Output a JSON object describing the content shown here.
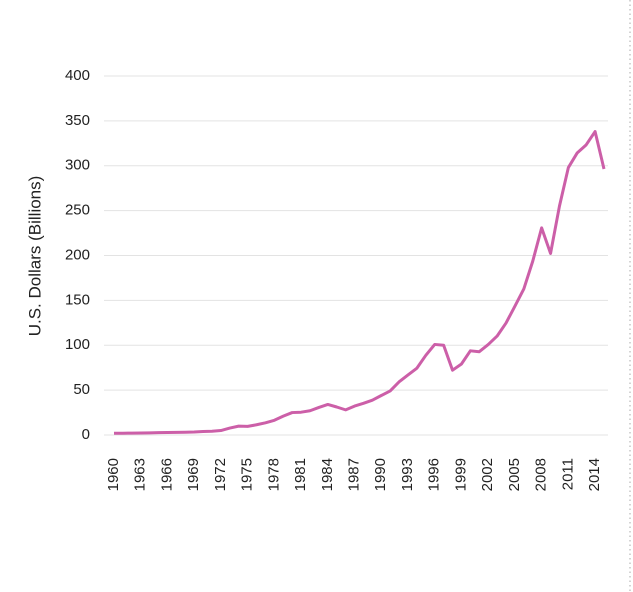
{
  "chart_data": {
    "type": "line",
    "y_label": "U.S. Dollars (Billions)",
    "x": [
      1960,
      1961,
      1962,
      1963,
      1964,
      1965,
      1966,
      1967,
      1968,
      1969,
      1970,
      1971,
      1972,
      1973,
      1974,
      1975,
      1976,
      1977,
      1978,
      1979,
      1980,
      1981,
      1982,
      1983,
      1984,
      1985,
      1986,
      1987,
      1988,
      1989,
      1990,
      1991,
      1992,
      1993,
      1994,
      1995,
      1996,
      1997,
      1998,
      1999,
      2000,
      2001,
      2002,
      2003,
      2004,
      2005,
      2006,
      2007,
      2008,
      2009,
      2010,
      2011,
      2012,
      2013,
      2014,
      2015
    ],
    "series": [
      {
        "color": "#cc5fa8",
        "values": [
          1.9,
          2.0,
          2.1,
          2.2,
          2.4,
          2.6,
          2.8,
          2.9,
          3.0,
          3.3,
          3.9,
          4.2,
          5.0,
          7.7,
          9.9,
          9.6,
          11.4,
          13.6,
          16.4,
          21.0,
          25.0,
          25.4,
          27.0,
          30.7,
          34.0,
          31.2,
          28.0,
          32.2,
          35.3,
          38.8,
          44.0,
          49.1,
          59.2,
          66.9,
          74.5,
          88.8,
          100.9,
          100.0,
          72.2,
          79.1,
          93.8,
          92.8,
          100.8,
          110.2,
          124.7,
          143.5,
          162.7,
          193.6,
          230.8,
          202.3,
          255.0,
          298.0,
          314.4,
          323.3,
          338.1,
          296.4
        ]
      }
    ],
    "xlim": [
      1960,
      2015
    ],
    "xticks": [
      1960,
      1963,
      1966,
      1969,
      1972,
      1975,
      1978,
      1981,
      1984,
      1987,
      1990,
      1993,
      1996,
      1999,
      2002,
      2005,
      2008,
      2011,
      2014
    ],
    "ylim": [
      0,
      400
    ],
    "yticks": [
      0,
      50,
      100,
      150,
      200,
      250,
      300,
      350,
      400
    ],
    "grid": true
  }
}
